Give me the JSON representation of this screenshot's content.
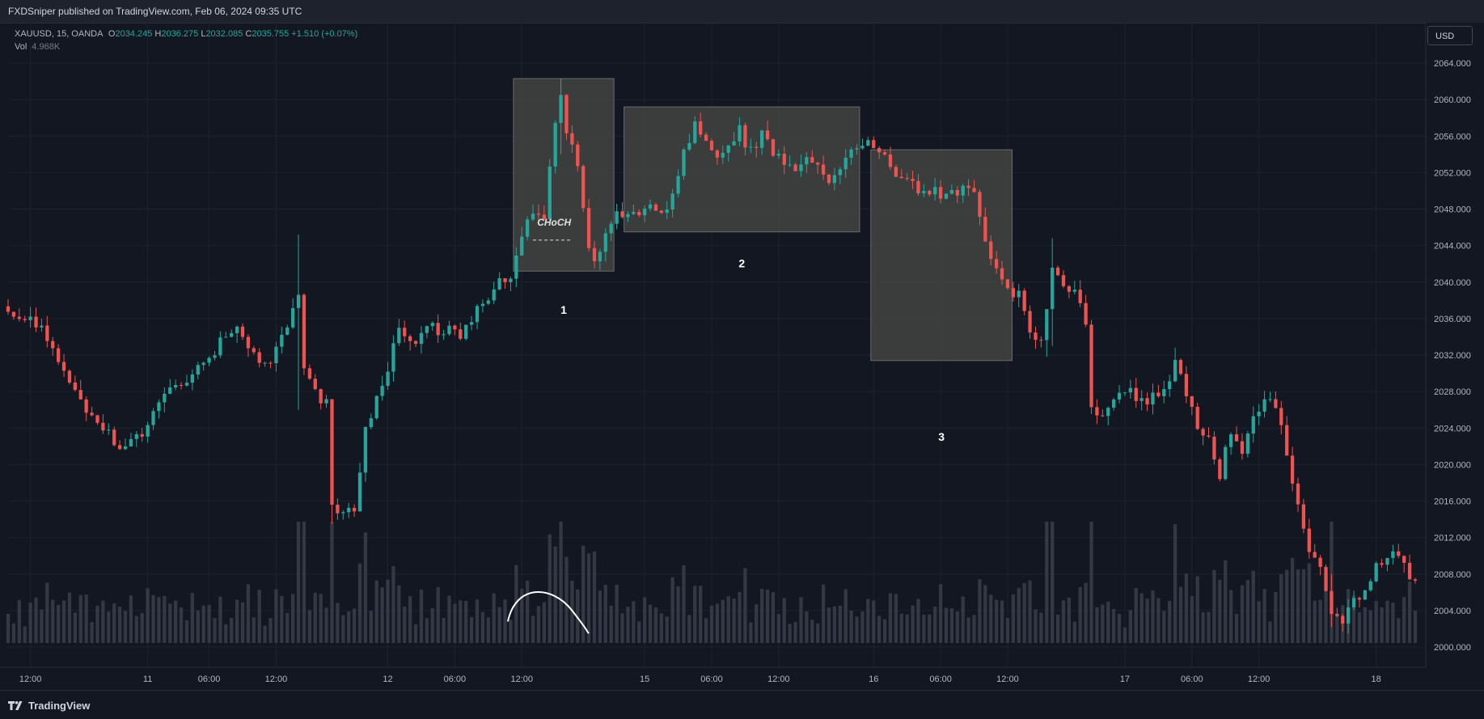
{
  "header": {
    "published_text": "FXDSniper published on TradingView.com, Feb 06, 2024 09:35 UTC"
  },
  "legend": {
    "symbol_text": "XAUUSD, 15, OANDA",
    "open_label": "O",
    "open_value": "2034.245",
    "high_label": "H",
    "high_value": "2036.275",
    "low_label": "L",
    "low_value": "2032.085",
    "close_label": "C",
    "close_value": "2035.755",
    "change_value": "+1.510 (+0.07%)",
    "vol_label": "Vol",
    "vol_value": "4.968K"
  },
  "currency_button": "USD",
  "footer": {
    "brand": "TradingView"
  },
  "colors": {
    "background": "#131722",
    "up_candle": "#26a69a",
    "down_candle": "#ef5350",
    "grid": "#1e2230",
    "zone_fill": "#4a4a46",
    "volume": "#3a3e4a"
  },
  "chart_data": {
    "type": "candlestick",
    "symbol": "XAUUSD",
    "interval": "15",
    "ylim": [
      1996,
      2068
    ],
    "y_ticks": [
      "2064.000",
      "2060.000",
      "2056.000",
      "2052.000",
      "2048.000",
      "2044.000",
      "2040.000",
      "2036.000",
      "2032.000",
      "2028.000",
      "2024.000",
      "2020.000",
      "2016.000",
      "2012.000",
      "2008.000",
      "2004.000",
      "2000.000"
    ],
    "x_ticks": [
      {
        "label": "12:00",
        "idx": 4
      },
      {
        "label": "11",
        "idx": 25
      },
      {
        "label": "06:00",
        "idx": 36
      },
      {
        "label": "12:00",
        "idx": 48
      },
      {
        "label": "12",
        "idx": 68
      },
      {
        "label": "06:00",
        "idx": 80
      },
      {
        "label": "12:00",
        "idx": 92
      },
      {
        "label": "15",
        "idx": 114
      },
      {
        "label": "06:00",
        "idx": 126
      },
      {
        "label": "12:00",
        "idx": 138
      },
      {
        "label": "16",
        "idx": 155
      },
      {
        "label": "06:00",
        "idx": 167
      },
      {
        "label": "12:00",
        "idx": 179
      },
      {
        "label": "17",
        "idx": 200
      },
      {
        "label": "06:00",
        "idx": 212
      },
      {
        "label": "12:00",
        "idx": 224
      },
      {
        "label": "18",
        "idx": 245
      }
    ],
    "close_path": [
      [
        0,
        2036.2
      ],
      [
        4,
        2036.5
      ],
      [
        7,
        2034.0
      ],
      [
        10,
        2030.5
      ],
      [
        13,
        2026.5
      ],
      [
        16,
        2024.5
      ],
      [
        18,
        2023.2
      ],
      [
        20,
        2021.5
      ],
      [
        22,
        2022.3
      ],
      [
        24,
        2023.5
      ],
      [
        26,
        2025.5
      ],
      [
        29,
        2028.2
      ],
      [
        32,
        2029.6
      ],
      [
        35,
        2031.0
      ],
      [
        38,
        2033.5
      ],
      [
        41,
        2035.0
      ],
      [
        44,
        2031.8
      ],
      [
        47,
        2031.8
      ],
      [
        50,
        2034.5
      ],
      [
        52,
        2038.8
      ],
      [
        53,
        2030.0
      ],
      [
        55,
        2028.0
      ],
      [
        57,
        2026.5
      ],
      [
        58,
        2016.0
      ],
      [
        60,
        2014.5
      ],
      [
        62,
        2015.0
      ],
      [
        64,
        2024.0
      ],
      [
        66,
        2027.5
      ],
      [
        68,
        2030.5
      ],
      [
        70,
        2035.5
      ],
      [
        72,
        2033.0
      ],
      [
        75,
        2035.0
      ],
      [
        78,
        2034.8
      ],
      [
        81,
        2034.2
      ],
      [
        84,
        2037.0
      ],
      [
        87,
        2039.5
      ],
      [
        90,
        2041.0
      ],
      [
        92,
        2045.0
      ],
      [
        94,
        2048.0
      ],
      [
        96,
        2047.0
      ],
      [
        98,
        2057.5
      ],
      [
        99,
        2060.0
      ],
      [
        100,
        2057.0
      ],
      [
        102,
        2052.5
      ],
      [
        104,
        2043.5
      ],
      [
        105,
        2042.5
      ],
      [
        107,
        2045.5
      ],
      [
        109,
        2047.2
      ],
      [
        111,
        2047.0
      ],
      [
        113,
        2047.5
      ],
      [
        115,
        2047.8
      ],
      [
        117,
        2047.0
      ],
      [
        119,
        2050.0
      ],
      [
        121,
        2054.5
      ],
      [
        123,
        2057.0
      ],
      [
        125,
        2055.5
      ],
      [
        127,
        2054.0
      ],
      [
        129,
        2055.5
      ],
      [
        131,
        2056.5
      ],
      [
        133,
        2054.2
      ],
      [
        135,
        2056.5
      ],
      [
        137,
        2054.0
      ],
      [
        139,
        2053.5
      ],
      [
        141,
        2052.5
      ],
      [
        143,
        2053.3
      ],
      [
        145,
        2052.5
      ],
      [
        147,
        2051.5
      ],
      [
        149,
        2053.0
      ],
      [
        151,
        2054.5
      ],
      [
        153,
        2055.5
      ],
      [
        155,
        2055.0
      ],
      [
        157,
        2053.5
      ],
      [
        159,
        2051.0
      ],
      [
        161,
        2050.8
      ],
      [
        163,
        2050.2
      ],
      [
        165,
        2050.0
      ],
      [
        167,
        2049.8
      ],
      [
        169,
        2049.5
      ],
      [
        171,
        2050.5
      ],
      [
        173,
        2049.2
      ],
      [
        175,
        2045.0
      ],
      [
        177,
        2041.2
      ],
      [
        179,
        2039.5
      ],
      [
        181,
        2038.5
      ],
      [
        183,
        2034.0
      ],
      [
        185,
        2033.0
      ],
      [
        187,
        2042.0
      ],
      [
        189,
        2040.0
      ],
      [
        191,
        2038.5
      ],
      [
        193,
        2036.0
      ],
      [
        194,
        2026.5
      ],
      [
        196,
        2025.5
      ],
      [
        198,
        2027.8
      ],
      [
        200,
        2028.5
      ],
      [
        202,
        2027.5
      ],
      [
        204,
        2026.8
      ],
      [
        206,
        2028.0
      ],
      [
        208,
        2029.5
      ],
      [
        209,
        2031.5
      ],
      [
        211,
        2027.0
      ],
      [
        213,
        2024.5
      ],
      [
        215,
        2022.5
      ],
      [
        217,
        2019.0
      ],
      [
        219,
        2024.0
      ],
      [
        221,
        2021.0
      ],
      [
        223,
        2025.0
      ],
      [
        225,
        2027.2
      ],
      [
        227,
        2026.8
      ],
      [
        229,
        2021.0
      ],
      [
        231,
        2016.0
      ],
      [
        233,
        2010.0
      ],
      [
        235,
        2008.5
      ],
      [
        237,
        2004.0
      ],
      [
        239,
        2003.0
      ],
      [
        241,
        2005.5
      ],
      [
        243,
        2006.0
      ],
      [
        245,
        2008.5
      ],
      [
        247,
        2009.5
      ],
      [
        249,
        2010.5
      ],
      [
        251,
        2008.0
      ],
      [
        252,
        2007.2
      ]
    ],
    "special_candles": [
      {
        "idx": 52,
        "high": 2045.2,
        "low": 2026.0
      },
      {
        "idx": 58,
        "high": 2019.5,
        "low": 2013.5
      },
      {
        "idx": 99,
        "high": 2062.3,
        "low": 2054.0
      },
      {
        "idx": 105,
        "high": 2044.5,
        "low": 2041.5
      },
      {
        "idx": 186,
        "high": 2037.0,
        "low": 2031.8
      },
      {
        "idx": 187,
        "high": 2044.8,
        "low": 2033.0
      },
      {
        "idx": 209,
        "high": 2032.8,
        "low": 2029.0
      },
      {
        "idx": 237,
        "high": 2008.0,
        "low": 2002.2
      }
    ],
    "zones": [
      {
        "label": "1",
        "idx_start": 90.5,
        "idx_end": 108.5,
        "top": 2062.3,
        "bottom": 2041.2,
        "label_price": 2036.5
      },
      {
        "label": "2",
        "idx_start": 110.3,
        "idx_end": 152.5,
        "top": 2059.2,
        "bottom": 2045.5,
        "label_price": 2041.6
      },
      {
        "label": "3",
        "idx_start": 154.5,
        "idx_end": 179.8,
        "top": 2054.5,
        "bottom": 2031.4,
        "label_price": 2022.6
      }
    ],
    "choch": {
      "label": "CHoCH",
      "idx_start": 94,
      "idx_end": 101,
      "price": 2044.6,
      "label_price": 2046.2
    },
    "volume_curve": [
      [
        89.5,
        2002.8
      ],
      [
        96,
        2005.2
      ],
      [
        101,
        2004.0
      ],
      [
        104,
        2001.5
      ]
    ],
    "volume_ylim": [
      0,
      1
    ]
  }
}
